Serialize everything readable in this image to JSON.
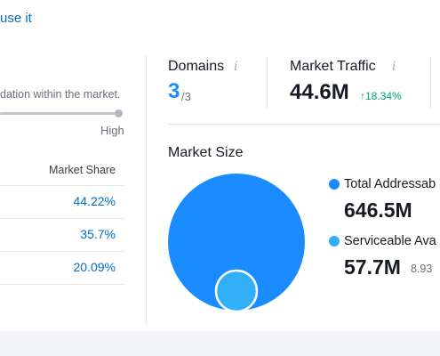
{
  "header": {
    "link_text": "use it"
  },
  "left_panel": {
    "description": "dation within the market.",
    "slider": {
      "end_label": "High",
      "level": 1.0
    },
    "table": {
      "column_header": "Market Share",
      "rows": [
        "44.22%",
        "35.7%",
        "20.09%"
      ]
    }
  },
  "metrics": {
    "domains": {
      "label": "Domains",
      "value": "3",
      "total": "/3",
      "info_icon": "info-icon"
    },
    "traffic": {
      "label": "Market Traffic",
      "value": "44.6M",
      "growth": "18.34%",
      "growth_arrow": "arrow-up-icon",
      "info_icon": "info-icon"
    }
  },
  "market_size": {
    "title": "Market Size",
    "tam": {
      "label": "Total Addressab",
      "value": "646.5M",
      "color": "#1a8cff"
    },
    "sam": {
      "label": "Serviceable Ava",
      "value": "57.7M",
      "percent": "8.93",
      "color": "#31b0f7"
    }
  },
  "colors": {
    "accent": "#006dca",
    "positive": "#009f81"
  }
}
